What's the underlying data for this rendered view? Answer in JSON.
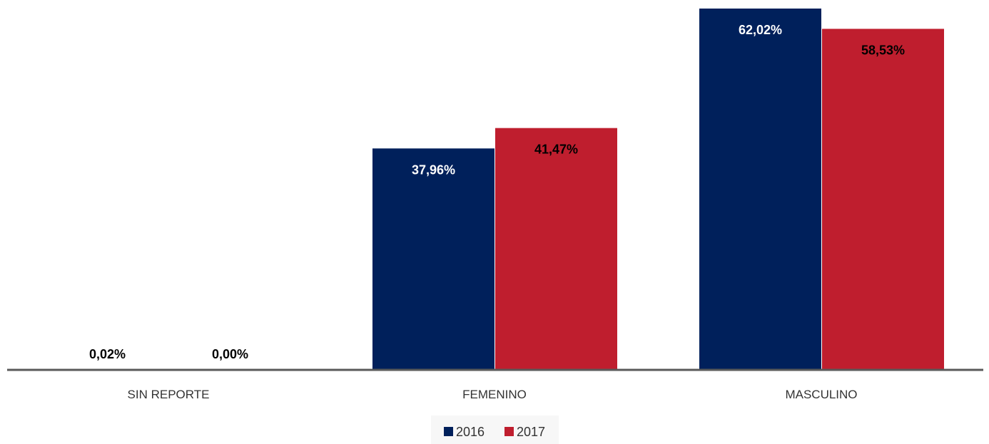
{
  "chart_data": {
    "type": "bar",
    "categories": [
      "SIN REPORTE",
      "FEMENINO",
      "MASCULINO"
    ],
    "series": [
      {
        "name": "2016",
        "values": [
          0.02,
          37.96,
          62.02
        ],
        "labels": [
          "0,02%",
          "37,96%",
          "62,02%"
        ],
        "color": "#00205b",
        "label_color": "#ffffff"
      },
      {
        "name": "2017",
        "values": [
          0.0,
          41.47,
          58.53
        ],
        "labels": [
          "0,00%",
          "41,47%",
          "58,53%"
        ],
        "color": "#bf1e2e",
        "label_color": "#000000"
      }
    ],
    "ylim": [
      0,
      62.02
    ],
    "grid": false,
    "legend_position": "bottom"
  }
}
